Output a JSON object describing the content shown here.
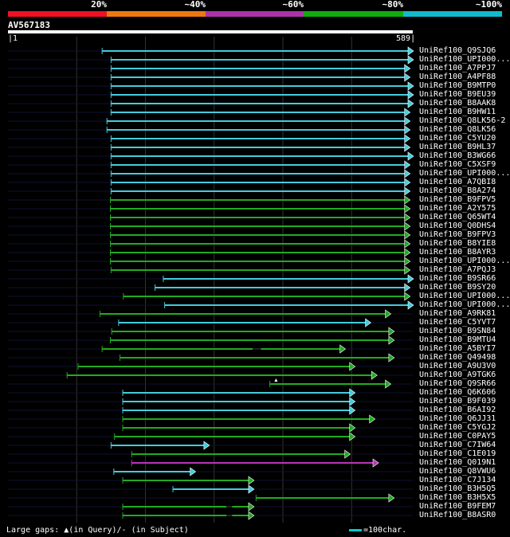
{
  "scale": {
    "labels": [
      "20%",
      "~40%",
      "~60%",
      "~80%",
      "~100%"
    ],
    "colors": [
      "#ee1122",
      "#ee7711",
      "#aa33aa",
      "#11aa11",
      "#11bbcc"
    ]
  },
  "query": {
    "name": "AV567183",
    "start": "1",
    "end": "589",
    "length": 589
  },
  "colors": {
    "cyan": "#44ccdd",
    "green": "#22aa22",
    "magenta": "#bb33bb",
    "dark_line": "#111133"
  },
  "hits": [
    {
      "name": "UniRef100_Q9SJQ6",
      "color": "cyan",
      "start": 137,
      "end": 589,
      "arrow": "cyan"
    },
    {
      "name": "UniRef100_UPI000...",
      "color": "cyan",
      "start": 150,
      "end": 589,
      "arrow": "cyan"
    },
    {
      "name": "UniRef100_A7PPJ7",
      "color": "cyan",
      "start": 150,
      "end": 584,
      "arrow": "cyan"
    },
    {
      "name": "UniRef100_A4PF88",
      "color": "cyan",
      "start": 150,
      "end": 584,
      "arrow": "cyan"
    },
    {
      "name": "UniRef100_B9MTP0",
      "color": "cyan",
      "start": 150,
      "end": 589,
      "arrow": "cyan"
    },
    {
      "name": "UniRef100_B9EU39",
      "color": "cyan",
      "start": 150,
      "end": 589,
      "arrow": "cyan"
    },
    {
      "name": "UniRef100_B8AAK8",
      "color": "cyan",
      "start": 150,
      "end": 589,
      "arrow": "cyan"
    },
    {
      "name": "UniRef100_B9HW11",
      "color": "cyan",
      "start": 150,
      "end": 584,
      "arrow": "cyan"
    },
    {
      "name": "UniRef100_Q8LK56-2",
      "color": "cyan",
      "start": 144,
      "end": 584,
      "arrow": "cyan"
    },
    {
      "name": "UniRef100_Q8LK56",
      "color": "cyan",
      "start": 144,
      "end": 584,
      "arrow": "cyan"
    },
    {
      "name": "UniRef100_C5YU20",
      "color": "cyan",
      "start": 150,
      "end": 584,
      "arrow": "cyan"
    },
    {
      "name": "UniRef100_B9HL37",
      "color": "cyan",
      "start": 150,
      "end": 584,
      "arrow": "cyan"
    },
    {
      "name": "UniRef100_B3WG66",
      "color": "cyan",
      "start": 150,
      "end": 589,
      "arrow": "cyan"
    },
    {
      "name": "UniRef100_C5XSF9",
      "color": "cyan",
      "start": 150,
      "end": 584,
      "arrow": "cyan"
    },
    {
      "name": "UniRef100_UPI000...",
      "color": "cyan",
      "start": 150,
      "end": 584,
      "arrow": "cyan"
    },
    {
      "name": "UniRef100_A7QBI8",
      "color": "cyan",
      "start": 150,
      "end": 584,
      "arrow": "cyan"
    },
    {
      "name": "UniRef100_B8A274",
      "color": "cyan",
      "start": 150,
      "end": 584,
      "arrow": "cyan"
    },
    {
      "name": "UniRef100_B9FPV5",
      "color": "green",
      "start": 149,
      "end": 584,
      "arrow": "green"
    },
    {
      "name": "UniRef100_A2Y575",
      "color": "green",
      "start": 149,
      "end": 584,
      "arrow": "green"
    },
    {
      "name": "UniRef100_Q65WT4",
      "color": "green",
      "start": 149,
      "end": 584,
      "arrow": "green"
    },
    {
      "name": "UniRef100_Q0DHS4",
      "color": "green",
      "start": 149,
      "end": 584,
      "arrow": "green"
    },
    {
      "name": "UniRef100_B9FPV3",
      "color": "green",
      "start": 149,
      "end": 584,
      "arrow": "green"
    },
    {
      "name": "UniRef100_B8YIE8",
      "color": "green",
      "start": 149,
      "end": 584,
      "arrow": "green"
    },
    {
      "name": "UniRef100_B8AYR3",
      "color": "green",
      "start": 149,
      "end": 584,
      "arrow": "green"
    },
    {
      "name": "UniRef100_UPI000...",
      "color": "green",
      "start": 149,
      "end": 584,
      "arrow": "green"
    },
    {
      "name": "UniRef100_A7PQJ3",
      "color": "green",
      "start": 150,
      "end": 584,
      "arrow": "green"
    },
    {
      "name": "UniRef100_B9SR66",
      "color": "cyan",
      "start": 226,
      "end": 589,
      "arrow": "cyan"
    },
    {
      "name": "UniRef100_B9SY20",
      "color": "cyan",
      "start": 214,
      "end": 584,
      "arrow": "cyan"
    },
    {
      "name": "UniRef100_UPI000...",
      "color": "green",
      "start": 168,
      "end": 584,
      "arrow": "green"
    },
    {
      "name": "UniRef100_UPI000...",
      "color": "cyan",
      "start": 228,
      "end": 589,
      "arrow": "cyan"
    },
    {
      "name": "UniRef100_A9RK81",
      "color": "green",
      "start": 134,
      "end": 556,
      "arrow": "green"
    },
    {
      "name": "UniRef100_C5YVT7",
      "color": "cyan",
      "start": 161,
      "end": 527,
      "arrow": "cyan"
    },
    {
      "name": "UniRef100_B9SN84",
      "color": "green",
      "start": 151,
      "end": 561,
      "arrow": "green"
    },
    {
      "name": "UniRef100_B9MTU4",
      "color": "green",
      "start": 149,
      "end": 561,
      "arrow": "green"
    },
    {
      "name": "UniRef100_A5BYI7",
      "color": "green",
      "start": 137,
      "end": 490,
      "arrow": "green",
      "gap": [
        356,
        368
      ]
    },
    {
      "name": "UniRef100_Q49498",
      "color": "green",
      "start": 163,
      "end": 561,
      "arrow": "green"
    },
    {
      "name": "UniRef100_A9U3V0",
      "color": "green",
      "start": 102,
      "end": 504,
      "arrow": "green"
    },
    {
      "name": "UniRef100_A9TGK6",
      "color": "green",
      "start": 86,
      "end": 536,
      "arrow": "green"
    },
    {
      "name": "UniRef100_Q9SR66",
      "color": "green",
      "start": 381,
      "end": 556,
      "arrow": "green",
      "marker": 390
    },
    {
      "name": "UniRef100_Q6K606",
      "color": "cyan",
      "start": 167,
      "end": 504,
      "arrow": "cyan"
    },
    {
      "name": "UniRef100_B9F039",
      "color": "cyan",
      "start": 167,
      "end": 504,
      "arrow": "cyan"
    },
    {
      "name": "UniRef100_B6AI92",
      "color": "cyan",
      "start": 167,
      "end": 504,
      "arrow": "cyan"
    },
    {
      "name": "UniRef100_Q6JJ31",
      "color": "green",
      "start": 167,
      "end": 533,
      "arrow": "green"
    },
    {
      "name": "UniRef100_C5YGJ2",
      "color": "green",
      "start": 167,
      "end": 504,
      "arrow": "green"
    },
    {
      "name": "UniRef100_C0PAY5",
      "color": "green",
      "start": 155,
      "end": 504,
      "arrow": "green"
    },
    {
      "name": "UniRef100_C7IW64",
      "color": "cyan",
      "start": 150,
      "end": 292,
      "arrow": "cyan"
    },
    {
      "name": "UniRef100_C1E019",
      "color": "green",
      "start": 180,
      "end": 497,
      "arrow": "green"
    },
    {
      "name": "UniRef100_Q019N1",
      "color": "magenta",
      "start": 180,
      "end": 538,
      "arrow": "magenta"
    },
    {
      "name": "UniRef100_Q8VWU6",
      "color": "cyan",
      "start": 154,
      "end": 272,
      "arrow": "cyan"
    },
    {
      "name": "UniRef100_C7J134",
      "color": "green",
      "start": 167,
      "end": 357,
      "arrow": "green"
    },
    {
      "name": "UniRef100_B3H5Q5",
      "color": "cyan",
      "start": 240,
      "end": 357,
      "arrow": "cyan"
    },
    {
      "name": "UniRef100_B3H5X5",
      "color": "green",
      "start": 361,
      "end": 561,
      "arrow": "green"
    },
    {
      "name": "UniRef100_B9FEM7",
      "color": "green",
      "start": 167,
      "end": 357,
      "arrow": "green",
      "gap": [
        318,
        326
      ]
    },
    {
      "name": "UniRef100_B8ASR0",
      "color": "green",
      "start": 167,
      "end": 357,
      "arrow": "green",
      "gap": [
        318,
        326
      ]
    }
  ],
  "footer": {
    "large_gaps_text": "Large gaps:",
    "query_gap_text": "(in Query)/",
    "subject_gap_text": "- (in Subject)",
    "legend_text": "=100char."
  }
}
